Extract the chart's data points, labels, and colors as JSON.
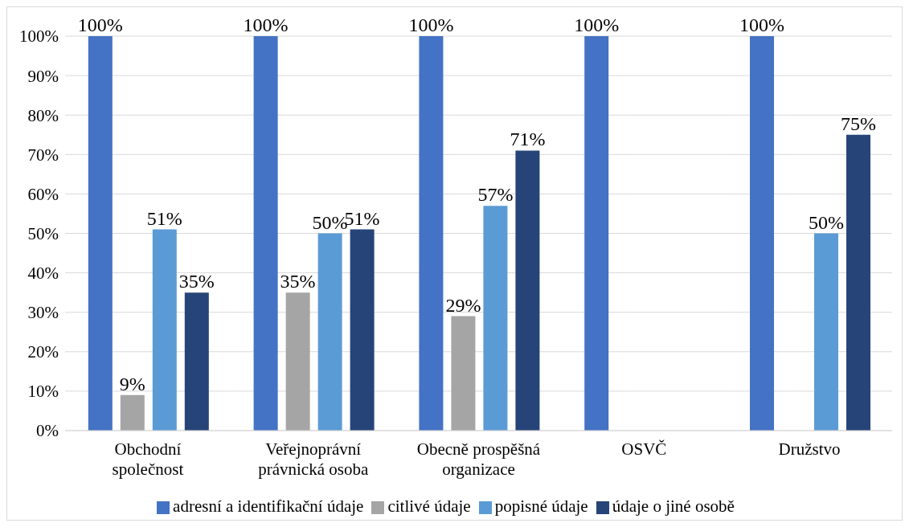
{
  "chart_data": {
    "type": "bar",
    "categories": [
      "Obchodní společnost",
      "Veřejnoprávní právnická osoba",
      "Obecně prospěšná organizace",
      "OSVČ",
      "Družstvo"
    ],
    "series": [
      {
        "name": "adresní a identifikační údaje",
        "color": "#4472c4",
        "values": [
          100,
          100,
          100,
          100,
          100
        ],
        "value_labels": [
          "100%",
          "100%",
          "100%",
          "100%",
          "100%"
        ]
      },
      {
        "name": "citlivé údaje",
        "color": "#a5a5a5",
        "values": [
          9,
          35,
          29,
          null,
          null
        ],
        "value_labels": [
          "9%",
          "35%",
          "29%",
          null,
          null
        ]
      },
      {
        "name": "popisné údaje",
        "color": "#5b9bd5",
        "values": [
          51,
          50,
          57,
          null,
          50
        ],
        "value_labels": [
          "51%",
          "50%",
          "57%",
          null,
          "50%"
        ]
      },
      {
        "name": "údaje o jiné osobě",
        "color": "#264478",
        "values": [
          35,
          51,
          71,
          null,
          75
        ],
        "value_labels": [
          "35%",
          "51%",
          "71%",
          null,
          "75%"
        ]
      }
    ],
    "ylim": [
      0,
      100
    ],
    "yticks": [
      {
        "value": 0,
        "label": "0%"
      },
      {
        "value": 10,
        "label": "10%"
      },
      {
        "value": 20,
        "label": "20%"
      },
      {
        "value": 30,
        "label": "30%"
      },
      {
        "value": 40,
        "label": "40%"
      },
      {
        "value": 50,
        "label": "50%"
      },
      {
        "value": 60,
        "label": "60%"
      },
      {
        "value": 70,
        "label": "70%"
      },
      {
        "value": 80,
        "label": "80%"
      },
      {
        "value": 90,
        "label": "90%"
      },
      {
        "value": 100,
        "label": "100%"
      }
    ],
    "grid": "y",
    "legend": "bottom"
  }
}
